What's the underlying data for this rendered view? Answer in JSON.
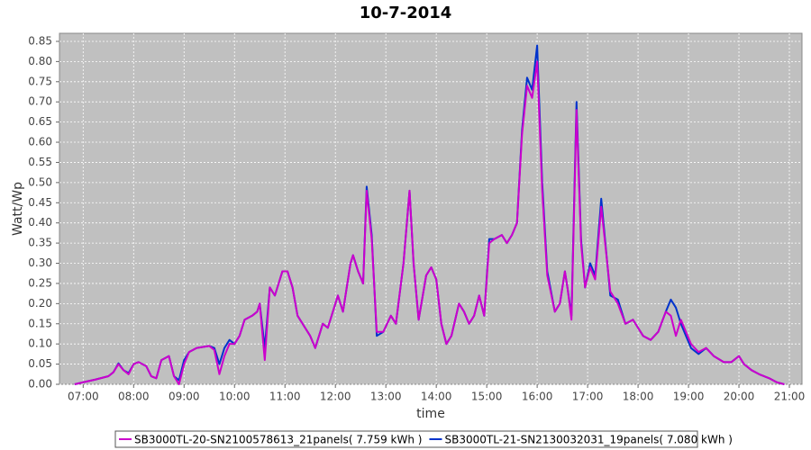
{
  "chart_data": {
    "type": "line",
    "title": "10-7-2014",
    "x_label": "time",
    "y_label": "Watt/Wp",
    "x": [
      6.83,
      7.0,
      7.25,
      7.5,
      7.6,
      7.7,
      7.8,
      7.9,
      8.0,
      8.1,
      8.25,
      8.35,
      8.45,
      8.55,
      8.7,
      8.8,
      8.9,
      9.0,
      9.1,
      9.25,
      9.5,
      9.6,
      9.7,
      9.8,
      9.9,
      10.0,
      10.1,
      10.2,
      10.35,
      10.45,
      10.5,
      10.6,
      10.7,
      10.8,
      10.95,
      11.05,
      11.15,
      11.25,
      11.4,
      11.5,
      11.6,
      11.75,
      11.85,
      12.0,
      12.05,
      12.15,
      12.3,
      12.35,
      12.45,
      12.55,
      12.62,
      12.72,
      12.82,
      12.95,
      13.1,
      13.2,
      13.35,
      13.47,
      13.55,
      13.65,
      13.8,
      13.9,
      14.0,
      14.1,
      14.2,
      14.3,
      14.45,
      14.55,
      14.65,
      14.75,
      14.85,
      14.95,
      15.05,
      15.15,
      15.3,
      15.4,
      15.5,
      15.6,
      15.7,
      15.8,
      15.9,
      16.0,
      16.1,
      16.2,
      16.35,
      16.45,
      16.55,
      16.6,
      16.68,
      16.78,
      16.87,
      16.95,
      17.05,
      17.15,
      17.27,
      17.45,
      17.6,
      17.75,
      17.9,
      18.0,
      18.1,
      18.25,
      18.4,
      18.55,
      18.65,
      18.75,
      18.85,
      18.95,
      19.05,
      19.2,
      19.35,
      19.5,
      19.7,
      19.85,
      20.0,
      20.1,
      20.25,
      20.4,
      20.6,
      20.75,
      20.9
    ],
    "series": [
      {
        "name": "SB3000TL-20-SN2100578613_21panels( 7.759 kWh )",
        "color": "#cc00cc",
        "values": [
          0,
          0.005,
          0.012,
          0.02,
          0.03,
          0.05,
          0.035,
          0.025,
          0.05,
          0.055,
          0.045,
          0.02,
          0.015,
          0.06,
          0.07,
          0.02,
          0,
          0.05,
          0.08,
          0.09,
          0.095,
          0.085,
          0.025,
          0.07,
          0.1,
          0.1,
          0.12,
          0.16,
          0.17,
          0.18,
          0.2,
          0.06,
          0.24,
          0.22,
          0.28,
          0.28,
          0.24,
          0.17,
          0.14,
          0.12,
          0.09,
          0.15,
          0.14,
          0.2,
          0.22,
          0.18,
          0.3,
          0.32,
          0.28,
          0.25,
          0.48,
          0.36,
          0.13,
          0.13,
          0.17,
          0.15,
          0.3,
          0.48,
          0.3,
          0.16,
          0.27,
          0.29,
          0.26,
          0.15,
          0.1,
          0.12,
          0.2,
          0.18,
          0.15,
          0.17,
          0.22,
          0.17,
          0.35,
          0.36,
          0.37,
          0.35,
          0.37,
          0.4,
          0.62,
          0.74,
          0.71,
          0.8,
          0.48,
          0.27,
          0.18,
          0.2,
          0.28,
          0.24,
          0.16,
          0.68,
          0.35,
          0.24,
          0.29,
          0.26,
          0.44,
          0.23,
          0.2,
          0.15,
          0.16,
          0.14,
          0.12,
          0.11,
          0.13,
          0.18,
          0.17,
          0.12,
          0.16,
          0.13,
          0.1,
          0.08,
          0.09,
          0.07,
          0.055,
          0.055,
          0.07,
          0.05,
          0.035,
          0.025,
          0.015,
          0.005,
          0
        ]
      },
      {
        "name": "SB3000TL-21-SN2130032031_19panels( 7.080 kWh )",
        "color": "#0033cc",
        "values": [
          0,
          0.005,
          0.012,
          0.02,
          0.03,
          0.052,
          0.035,
          0.028,
          0.05,
          0.055,
          0.045,
          0.02,
          0.015,
          0.06,
          0.07,
          0.02,
          0.01,
          0.06,
          0.08,
          0.09,
          0.095,
          0.09,
          0.05,
          0.09,
          0.11,
          0.1,
          0.12,
          0.16,
          0.17,
          0.18,
          0.2,
          0.09,
          0.24,
          0.22,
          0.28,
          0.28,
          0.24,
          0.17,
          0.14,
          0.12,
          0.09,
          0.15,
          0.14,
          0.2,
          0.22,
          0.18,
          0.3,
          0.32,
          0.28,
          0.25,
          0.49,
          0.37,
          0.12,
          0.13,
          0.17,
          0.15,
          0.3,
          0.48,
          0.3,
          0.16,
          0.27,
          0.29,
          0.26,
          0.15,
          0.1,
          0.12,
          0.2,
          0.18,
          0.15,
          0.17,
          0.22,
          0.17,
          0.36,
          0.36,
          0.37,
          0.35,
          0.37,
          0.4,
          0.63,
          0.76,
          0.73,
          0.84,
          0.5,
          0.28,
          0.18,
          0.2,
          0.28,
          0.24,
          0.17,
          0.7,
          0.36,
          0.24,
          0.3,
          0.27,
          0.46,
          0.22,
          0.21,
          0.15,
          0.16,
          0.14,
          0.12,
          0.11,
          0.13,
          0.18,
          0.21,
          0.19,
          0.15,
          0.12,
          0.09,
          0.075,
          0.09,
          0.07,
          0.055,
          0.055,
          0.07,
          0.05,
          0.035,
          0.025,
          0.015,
          0.005,
          0
        ]
      }
    ],
    "xlim": [
      6.53,
      21.25
    ],
    "xticks": [
      {
        "value": 7,
        "label": "07:00"
      },
      {
        "value": 8,
        "label": "08:00"
      },
      {
        "value": 9,
        "label": "09:00"
      },
      {
        "value": 10,
        "label": "10:00"
      },
      {
        "value": 11,
        "label": "11:00"
      },
      {
        "value": 12,
        "label": "12:00"
      },
      {
        "value": 13,
        "label": "13:00"
      },
      {
        "value": 14,
        "label": "14:00"
      },
      {
        "value": 15,
        "label": "15:00"
      },
      {
        "value": 16,
        "label": "16:00"
      },
      {
        "value": 17,
        "label": "17:00"
      },
      {
        "value": 18,
        "label": "18:00"
      },
      {
        "value": 19,
        "label": "19:00"
      },
      {
        "value": 20,
        "label": "20:00"
      },
      {
        "value": 21,
        "label": "21:00"
      }
    ],
    "ylim": [
      0,
      0.87
    ],
    "yticks": [
      {
        "value": 0,
        "label": "0.00"
      },
      {
        "value": 0.05,
        "label": "0.05"
      },
      {
        "value": 0.1,
        "label": "0.10"
      },
      {
        "value": 0.15,
        "label": "0.15"
      },
      {
        "value": 0.2,
        "label": "0.20"
      },
      {
        "value": 0.25,
        "label": "0.25"
      },
      {
        "value": 0.3,
        "label": "0.30"
      },
      {
        "value": 0.35,
        "label": "0.35"
      },
      {
        "value": 0.4,
        "label": "0.40"
      },
      {
        "value": 0.45,
        "label": "0.45"
      },
      {
        "value": 0.5,
        "label": "0.50"
      },
      {
        "value": 0.55,
        "label": "0.55"
      },
      {
        "value": 0.6,
        "label": "0.60"
      },
      {
        "value": 0.65,
        "label": "0.65"
      },
      {
        "value": 0.7,
        "label": "0.70"
      },
      {
        "value": 0.75,
        "label": "0.75"
      },
      {
        "value": 0.8,
        "label": "0.80"
      },
      {
        "value": 0.85,
        "label": "0.85"
      }
    ],
    "grid": true,
    "legend": "bottom"
  }
}
